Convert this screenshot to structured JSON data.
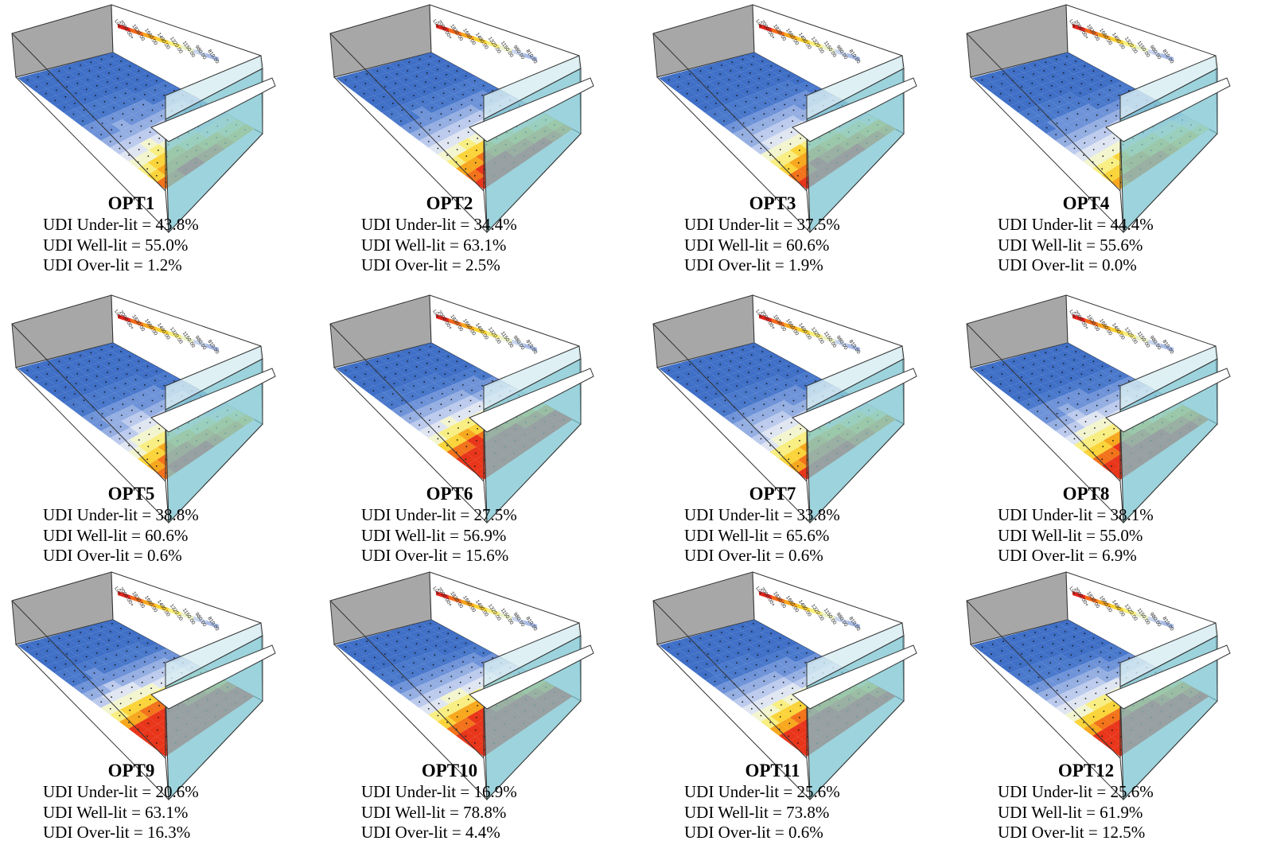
{
  "legend": {
    "unit": "Lux",
    "labels": [
      "2000.00+",
      "1830.00",
      "1660.00",
      "1490.00",
      "1320.00",
      "1150.00",
      "980.00",
      "810.00"
    ],
    "colors": [
      "#e8241c",
      "#f56a1a",
      "#f9a51c",
      "#fbd132",
      "#fbf07a",
      "#eef3c8",
      "#c9d6ee",
      "#a9bce6"
    ]
  },
  "scale_colors": [
    "#3f6fc6",
    "#4a79cc",
    "#6f93d8",
    "#95afe2",
    "#bccbed",
    "#dfe6f2",
    "#f3f5cf",
    "#f8ee82",
    "#fad43a",
    "#f7a81e",
    "#f2731b",
    "#e9361b"
  ],
  "options": [
    {
      "title": "OPT1",
      "under": "UDI Under-lit = 43.8%",
      "well": "UDI Well-lit = 55.0%",
      "over": "UDI Over-lit = 1.2%",
      "intensity": 0.55
    },
    {
      "title": "OPT2",
      "under": "UDI Under-lit = 34.4%",
      "well": "UDI Well-lit = 63.1%",
      "over": "UDI Over-lit = 2.5%",
      "intensity": 0.65
    },
    {
      "title": "OPT3",
      "under": "UDI Under-lit = 37.5%",
      "well": "UDI Well-lit = 60.6%",
      "over": "UDI Over-lit = 1.9%",
      "intensity": 0.62
    },
    {
      "title": "OPT4",
      "under": "UDI Under-lit = 44.4%",
      "well": "UDI Well-lit = 55.6%",
      "over": "UDI Over-lit = 0.0%",
      "intensity": 0.52
    },
    {
      "title": "OPT5",
      "under": "UDI Under-lit = 38.8%",
      "well": "UDI Well-lit = 60.6%",
      "over": "UDI Over-lit = 0.6%",
      "intensity": 0.58
    },
    {
      "title": "OPT6",
      "under": "UDI Under-lit = 27.5%",
      "well": "UDI Well-lit = 56.9%",
      "over": "UDI Over-lit = 15.6%",
      "intensity": 0.85
    },
    {
      "title": "OPT7",
      "under": "UDI Under-lit = 33.8%",
      "well": "UDI Well-lit = 65.6%",
      "over": "UDI Over-lit = 0.6%",
      "intensity": 0.6
    },
    {
      "title": "OPT8",
      "under": "UDI Under-lit = 38.1%",
      "well": "UDI Well-lit = 55.0%",
      "over": "UDI Over-lit = 6.9%",
      "intensity": 0.72
    },
    {
      "title": "OPT9",
      "under": "UDI Under-lit = 20.6%",
      "well": "UDI Well-lit = 63.1%",
      "over": "UDI Over-lit = 16.3%",
      "intensity": 0.95
    },
    {
      "title": "OPT10",
      "under": "UDI Under-lit = 16.9%",
      "well": "UDI Well-lit = 78.8%",
      "over": "UDI Over-lit = 4.4%",
      "intensity": 0.88
    },
    {
      "title": "OPT11",
      "under": "UDI Under-lit = 25.6%",
      "well": "UDI Well-lit = 73.8%",
      "over": "UDI Over-lit = 0.6%",
      "intensity": 0.8
    },
    {
      "title": "OPT12",
      "under": "UDI Under-lit = 25.6%",
      "well": "UDI Well-lit = 61.9%",
      "over": "UDI Over-lit = 12.5%",
      "intensity": 0.82
    }
  ]
}
